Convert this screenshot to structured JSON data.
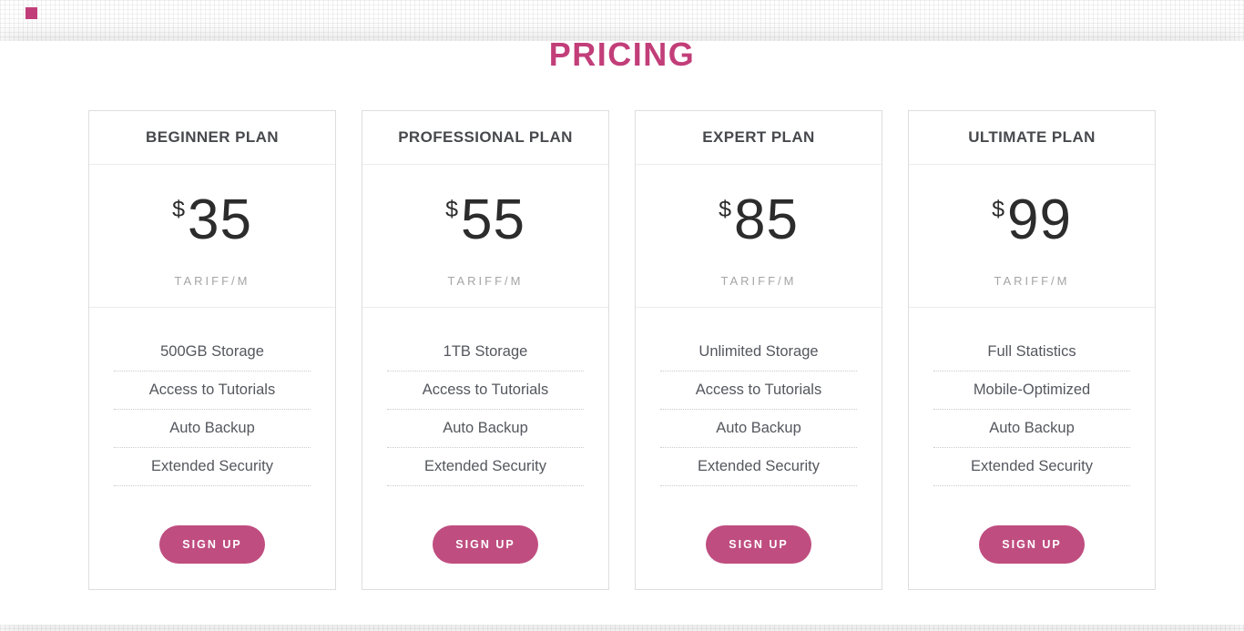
{
  "theme": {
    "accent": "#c23e79",
    "button": "#bf4d80",
    "price_text": "#2c2c2c",
    "plan_title_text": "#47494d",
    "feature_text": "#54575e",
    "period_text": "#a5a5a5"
  },
  "header": {
    "title": "PRICING"
  },
  "plans": [
    {
      "name": "BEGINNER PLAN",
      "currency": "$",
      "price": "35",
      "period": "TARIFF/M",
      "features": [
        "500GB Storage",
        "Access to Tutorials",
        "Auto Backup",
        "Extended Security"
      ],
      "cta": "SIGN UP"
    },
    {
      "name": "PROFESSIONAL PLAN",
      "currency": "$",
      "price": "55",
      "period": "TARIFF/M",
      "features": [
        "1TB Storage",
        "Access to Tutorials",
        "Auto Backup",
        "Extended Security"
      ],
      "cta": "SIGN UP"
    },
    {
      "name": "EXPERT PLAN",
      "currency": "$",
      "price": "85",
      "period": "TARIFF/M",
      "features": [
        "Unlimited Storage",
        "Access to Tutorials",
        "Auto Backup",
        "Extended Security"
      ],
      "cta": "SIGN UP"
    },
    {
      "name": "ULTIMATE PLAN",
      "currency": "$",
      "price": "99",
      "period": "TARIFF/M",
      "features": [
        "Full Statistics",
        "Mobile-Optimized",
        "Auto Backup",
        "Extended Security"
      ],
      "cta": "SIGN UP"
    }
  ]
}
